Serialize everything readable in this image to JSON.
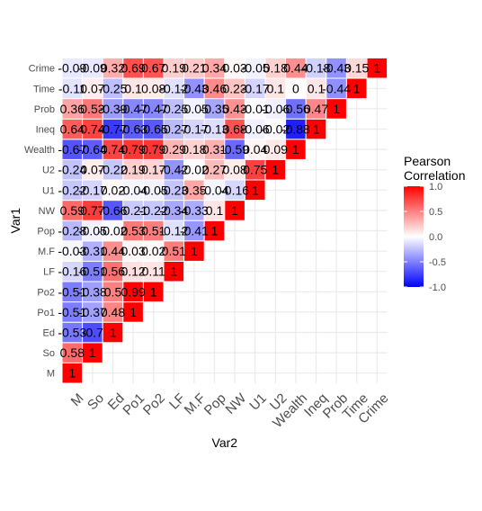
{
  "chart_data": {
    "type": "heatmap",
    "xlabel": "Var2",
    "ylabel": "Var1",
    "variables": [
      "M",
      "So",
      "Ed",
      "Po1",
      "Po2",
      "LF",
      "M.F",
      "Pop",
      "NW",
      "U1",
      "U2",
      "Wealth",
      "Ineq",
      "Prob",
      "Time",
      "Crime"
    ],
    "legend": {
      "title_lines": [
        "Pearson",
        "Correlation"
      ],
      "ticks": [
        1.0,
        0.5,
        0.0,
        -0.5,
        -1.0
      ],
      "tick_labels": [
        "1.0",
        "0.5",
        "0.0",
        "-0.5",
        "-1.0"
      ],
      "placement": "right"
    },
    "colors": {
      "low": "#0000ff",
      "mid": "#ffffff",
      "high": "#ff0000",
      "grid": "#ebebeb",
      "text": "#000000"
    },
    "matrix": [
      [
        1,
        0.58,
        -0.53,
        -0.51,
        -0.51,
        -0.16,
        -0.03,
        -0.28,
        0.59,
        -0.22,
        -0.24,
        -0.67,
        0.64,
        0.36,
        -0.11,
        -0.09
      ],
      [
        0.58,
        1,
        -0.7,
        -0.37,
        -0.38,
        -0.51,
        -0.31,
        -0.05,
        0.77,
        -0.17,
        0.07,
        -0.64,
        0.74,
        0.53,
        0.07,
        -0.09
      ],
      [
        -0.53,
        -0.7,
        1,
        0.48,
        0.5,
        0.56,
        0.44,
        -0.02,
        -0.66,
        0.02,
        -0.22,
        0.74,
        -0.77,
        -0.39,
        -0.25,
        0.32
      ],
      [
        -0.51,
        -0.37,
        0.48,
        1,
        0.99,
        0.12,
        0.03,
        0.53,
        -0.21,
        -0.04,
        0.19,
        0.79,
        -0.63,
        -0.47,
        0.1,
        0.69
      ],
      [
        -0.51,
        -0.38,
        0.5,
        0.99,
        1,
        0.11,
        0.02,
        0.51,
        -0.22,
        -0.05,
        0.17,
        0.79,
        -0.65,
        -0.47,
        0.08,
        0.67
      ],
      [
        -0.16,
        -0.51,
        0.56,
        0.12,
        0.11,
        1,
        0.51,
        -0.12,
        -0.34,
        -0.23,
        -0.42,
        0.29,
        -0.27,
        -0.25,
        -0.12,
        0.19
      ],
      [
        -0.03,
        -0.31,
        0.44,
        0.03,
        0.02,
        0.51,
        1,
        -0.41,
        -0.33,
        0.35,
        -0.02,
        0.18,
        -0.17,
        -0.05,
        -0.43,
        0.21
      ],
      [
        -0.28,
        -0.05,
        -0.02,
        0.53,
        0.51,
        -0.12,
        -0.41,
        1,
        0.1,
        -0.04,
        0.27,
        0.31,
        -0.13,
        -0.35,
        0.46,
        0.34
      ],
      [
        0.59,
        0.77,
        -0.66,
        -0.21,
        -0.22,
        -0.34,
        -0.33,
        0.1,
        1,
        -0.16,
        0.08,
        -0.59,
        0.68,
        0.43,
        0.23,
        0.03
      ],
      [
        -0.22,
        -0.17,
        0.02,
        -0.04,
        -0.05,
        -0.23,
        0.35,
        -0.04,
        -0.16,
        1,
        0.75,
        0.04,
        -0.06,
        -0.01,
        -0.17,
        -0.05
      ],
      [
        -0.24,
        0.07,
        -0.22,
        0.19,
        0.17,
        -0.42,
        -0.02,
        0.27,
        0.08,
        0.75,
        1,
        0.09,
        -0.02,
        -0.06,
        0.1,
        0.18
      ],
      [
        -0.67,
        -0.64,
        0.74,
        0.79,
        0.79,
        0.29,
        0.18,
        0.31,
        -0.59,
        0.04,
        0.09,
        1,
        -0.88,
        -0.56,
        0,
        0.44
      ],
      [
        0.64,
        0.74,
        -0.77,
        -0.63,
        -0.65,
        -0.27,
        -0.17,
        -0.13,
        0.68,
        -0.06,
        -0.02,
        -0.88,
        1,
        0.47,
        0.1,
        -0.18
      ],
      [
        0.36,
        0.53,
        -0.39,
        -0.47,
        -0.47,
        -0.25,
        -0.05,
        -0.35,
        0.43,
        -0.01,
        -0.06,
        -0.56,
        0.47,
        1,
        -0.44,
        -0.43
      ],
      [
        -0.11,
        0.07,
        -0.25,
        0.1,
        0.08,
        -0.12,
        -0.43,
        0.46,
        0.23,
        -0.17,
        0.1,
        0,
        0.1,
        -0.44,
        1,
        0.15
      ],
      [
        -0.09,
        -0.09,
        0.32,
        0.69,
        0.67,
        0.19,
        0.21,
        0.34,
        0.03,
        -0.05,
        0.18,
        0.44,
        -0.18,
        -0.43,
        0.15,
        1
      ]
    ]
  }
}
